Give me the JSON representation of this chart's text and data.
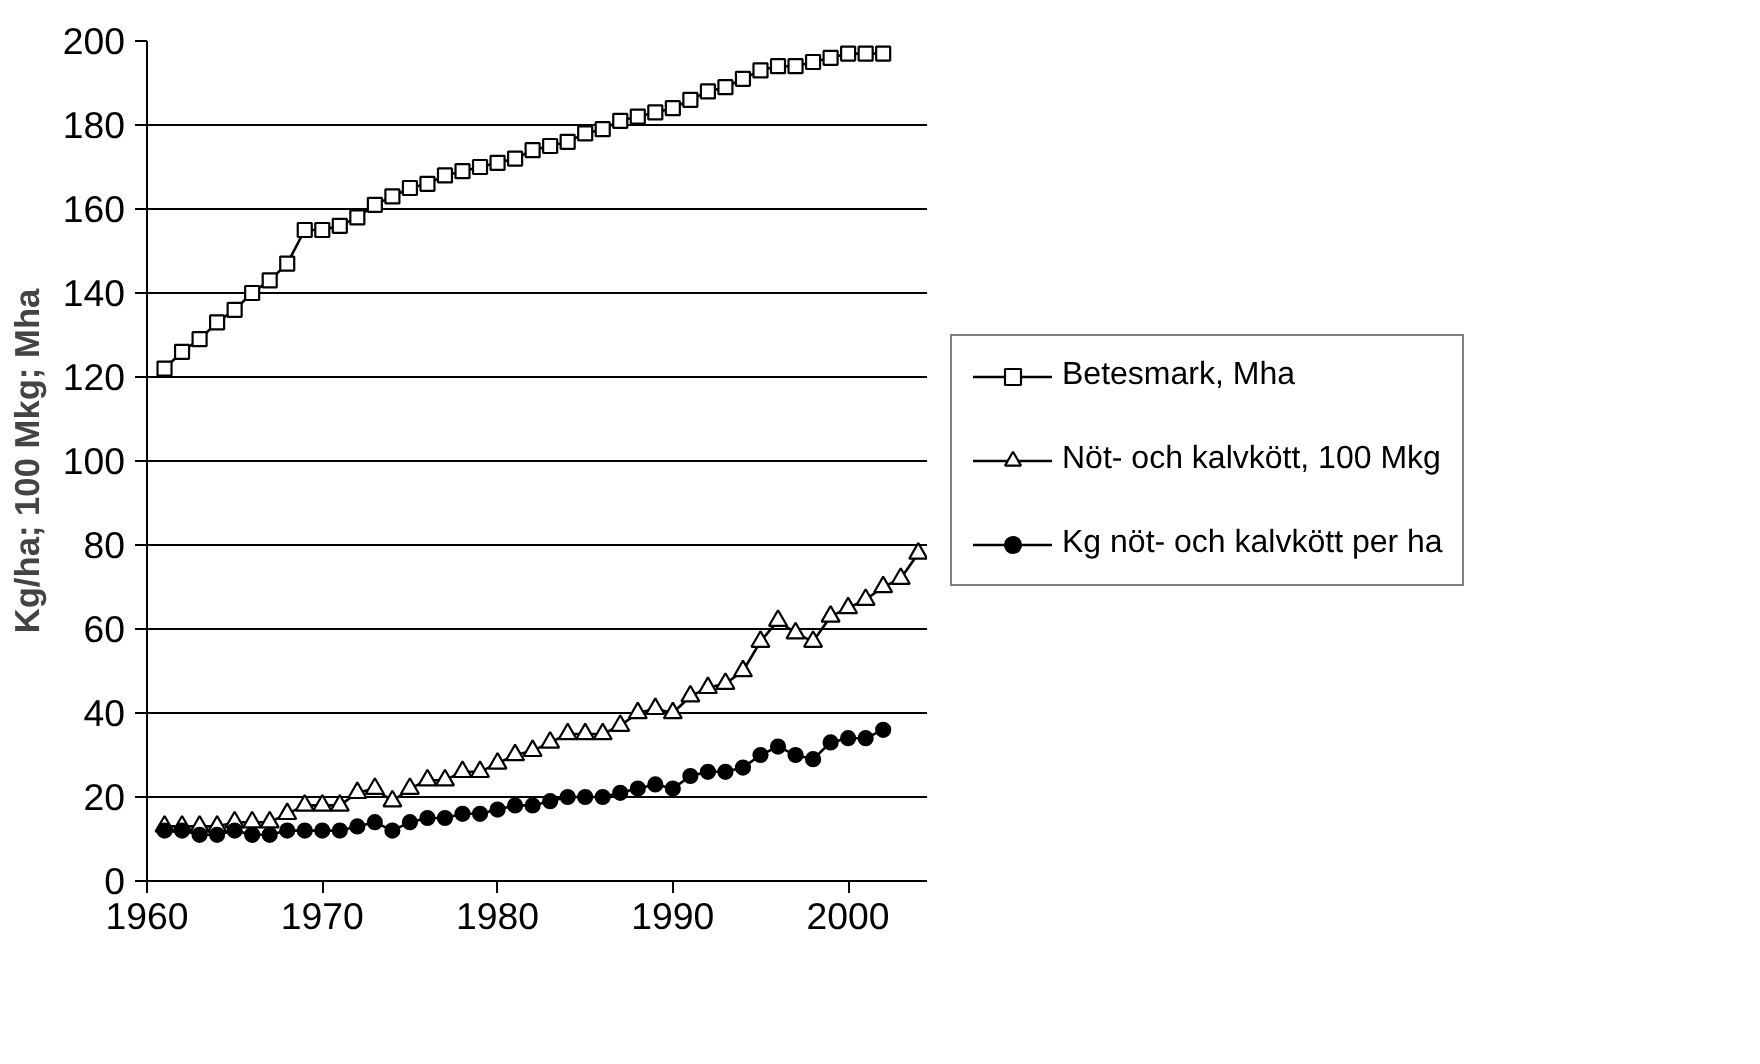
{
  "chart_data": {
    "type": "line",
    "ylabel": "Kg/ha; 100 Mkg; Mha",
    "xlim": [
      1960,
      2004.5
    ],
    "xticks": [
      1960,
      1970,
      1980,
      1990,
      2000
    ],
    "ylim": [
      0,
      200
    ],
    "yticks": [
      0,
      20,
      40,
      60,
      80,
      100,
      120,
      140,
      160,
      180,
      200
    ],
    "grid": "y",
    "legend": "right",
    "series": [
      {
        "name": "Betesmark, Mha",
        "color": "#000000",
        "marker": "square",
        "x": [
          1961,
          1962,
          1963,
          1964,
          1965,
          1966,
          1967,
          1968,
          1969,
          1970,
          1971,
          1972,
          1973,
          1974,
          1975,
          1976,
          1977,
          1978,
          1979,
          1980,
          1981,
          1982,
          1983,
          1984,
          1985,
          1986,
          1987,
          1988,
          1989,
          1990,
          1991,
          1992,
          1993,
          1994,
          1995,
          1996,
          1997,
          1998,
          1999,
          2000,
          2001,
          2002
        ],
        "values": [
          122,
          126,
          129,
          133,
          136,
          140,
          143,
          147,
          155,
          155,
          156,
          158,
          161,
          163,
          165,
          166,
          168,
          169,
          170,
          171,
          172,
          174,
          175,
          176,
          178,
          179,
          181,
          182,
          183,
          184,
          186,
          188,
          189,
          191,
          193,
          194,
          194,
          195,
          196,
          197,
          197,
          197
        ]
      },
      {
        "name": "Nöt- och kalvkött, 100 Mkg",
        "color": "#000000",
        "marker": "triangle",
        "x": [
          1961,
          1962,
          1963,
          1964,
          1965,
          1966,
          1967,
          1968,
          1969,
          1970,
          1971,
          1972,
          1973,
          1974,
          1975,
          1976,
          1977,
          1978,
          1979,
          1980,
          1981,
          1982,
          1983,
          1984,
          1985,
          1986,
          1987,
          1988,
          1989,
          1990,
          1991,
          1992,
          1993,
          1994,
          1995,
          1996,
          1997,
          1998,
          1999,
          2000,
          2001,
          2002,
          2003,
          2004
        ],
        "values": [
          13,
          13,
          13,
          13,
          14,
          14,
          14,
          16,
          18,
          18,
          18,
          21,
          22,
          19,
          22,
          24,
          24,
          26,
          26,
          28,
          30,
          31,
          33,
          35,
          35,
          35,
          37,
          40,
          41,
          40,
          44,
          46,
          47,
          50,
          57,
          62,
          59,
          57,
          63,
          65,
          67,
          70,
          72,
          78
        ]
      },
      {
        "name": "Kg nöt- och kalvkött per ha",
        "color": "#000000",
        "marker": "circle",
        "x": [
          1961,
          1962,
          1963,
          1964,
          1965,
          1966,
          1967,
          1968,
          1969,
          1970,
          1971,
          1972,
          1973,
          1974,
          1975,
          1976,
          1977,
          1978,
          1979,
          1980,
          1981,
          1982,
          1983,
          1984,
          1985,
          1986,
          1987,
          1988,
          1989,
          1990,
          1991,
          1992,
          1993,
          1994,
          1995,
          1996,
          1997,
          1998,
          1999,
          2000,
          2001,
          2002
        ],
        "values": [
          12,
          12,
          11,
          11,
          12,
          11,
          11,
          12,
          12,
          12,
          12,
          13,
          14,
          12,
          14,
          15,
          15,
          16,
          16,
          17,
          18,
          18,
          19,
          20,
          20,
          20,
          21,
          22,
          23,
          22,
          25,
          26,
          26,
          27,
          30,
          32,
          30,
          29,
          33,
          34,
          34,
          36
        ]
      }
    ]
  }
}
